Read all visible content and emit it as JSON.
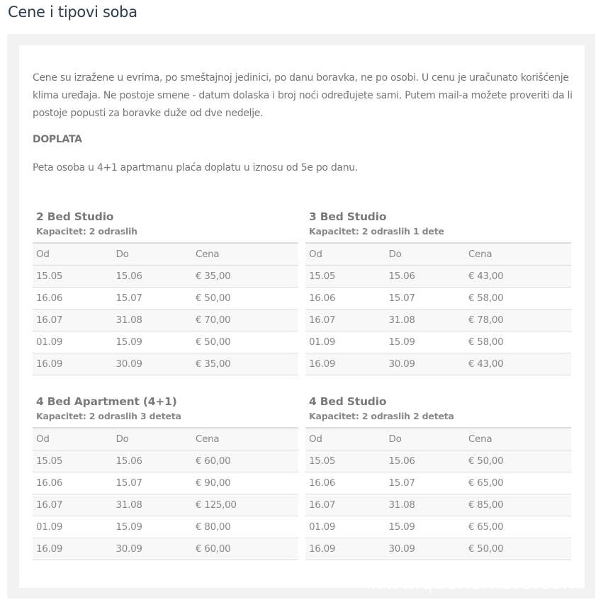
{
  "page_title": "Cene i tipovi soba",
  "intro": "Cene su izražene u evrima, po smeštajnoj jedinici, po danu boravka, ne po osobi. U cenu je uračunato korišćenje klima uređaja. Ne postoje smene - datum dolaska i broj noći određujete sami. Putem mail-a možete proveriti da li postoje popusti za boravke duže od dve nedelje.",
  "surcharge_heading": "DOPLATA",
  "surcharge_text": "Peta osoba u 4+1 apartmanu plaća doplatu u iznosu od 5e po danu.",
  "columns": [
    "Od",
    "Do",
    "Cena"
  ],
  "rooms": [
    {
      "title": "2 Bed Studio",
      "capacity": "Kapacitet: 2 odraslih",
      "rows": [
        [
          "15.05",
          "15.06",
          "€ 35,00"
        ],
        [
          "16.06",
          "15.07",
          "€ 50,00"
        ],
        [
          "16.07",
          "31.08",
          "€ 70,00"
        ],
        [
          "01.09",
          "15.09",
          "€ 50,00"
        ],
        [
          "16.09",
          "30.09",
          "€ 35,00"
        ]
      ]
    },
    {
      "title": "3 Bed Studio",
      "capacity": "Kapacitet: 2 odraslih 1 dete",
      "rows": [
        [
          "15.05",
          "15.06",
          "€ 43,00"
        ],
        [
          "16.06",
          "15.07",
          "€ 58,00"
        ],
        [
          "16.07",
          "31.08",
          "€ 78,00"
        ],
        [
          "01.09",
          "15.09",
          "€ 58,00"
        ],
        [
          "16.09",
          "30.09",
          "€ 43,00"
        ]
      ]
    },
    {
      "title": "4 Bed Apartment (4+1)",
      "capacity": "Kapacitet: 2 odraslih 3 deteta",
      "rows": [
        [
          "15.05",
          "15.06",
          "€ 60,00"
        ],
        [
          "16.06",
          "15.07",
          "€ 90,00"
        ],
        [
          "16.07",
          "31.08",
          "€ 125,00"
        ],
        [
          "01.09",
          "15.09",
          "€ 80,00"
        ],
        [
          "16.09",
          "30.09",
          "€ 60,00"
        ]
      ]
    },
    {
      "title": "4 Bed Studio",
      "capacity": "Kapacitet: 2 odraslih 2 deteta",
      "rows": [
        [
          "15.05",
          "15.06",
          "€ 50,00"
        ],
        [
          "16.06",
          "15.07",
          "€ 65,00"
        ],
        [
          "16.07",
          "31.08",
          "€ 85,00"
        ],
        [
          "01.09",
          "15.09",
          "€ 65,00"
        ],
        [
          "16.09",
          "30.09",
          "€ 50,00"
        ]
      ]
    }
  ],
  "watermark": "www.quenamore.com"
}
